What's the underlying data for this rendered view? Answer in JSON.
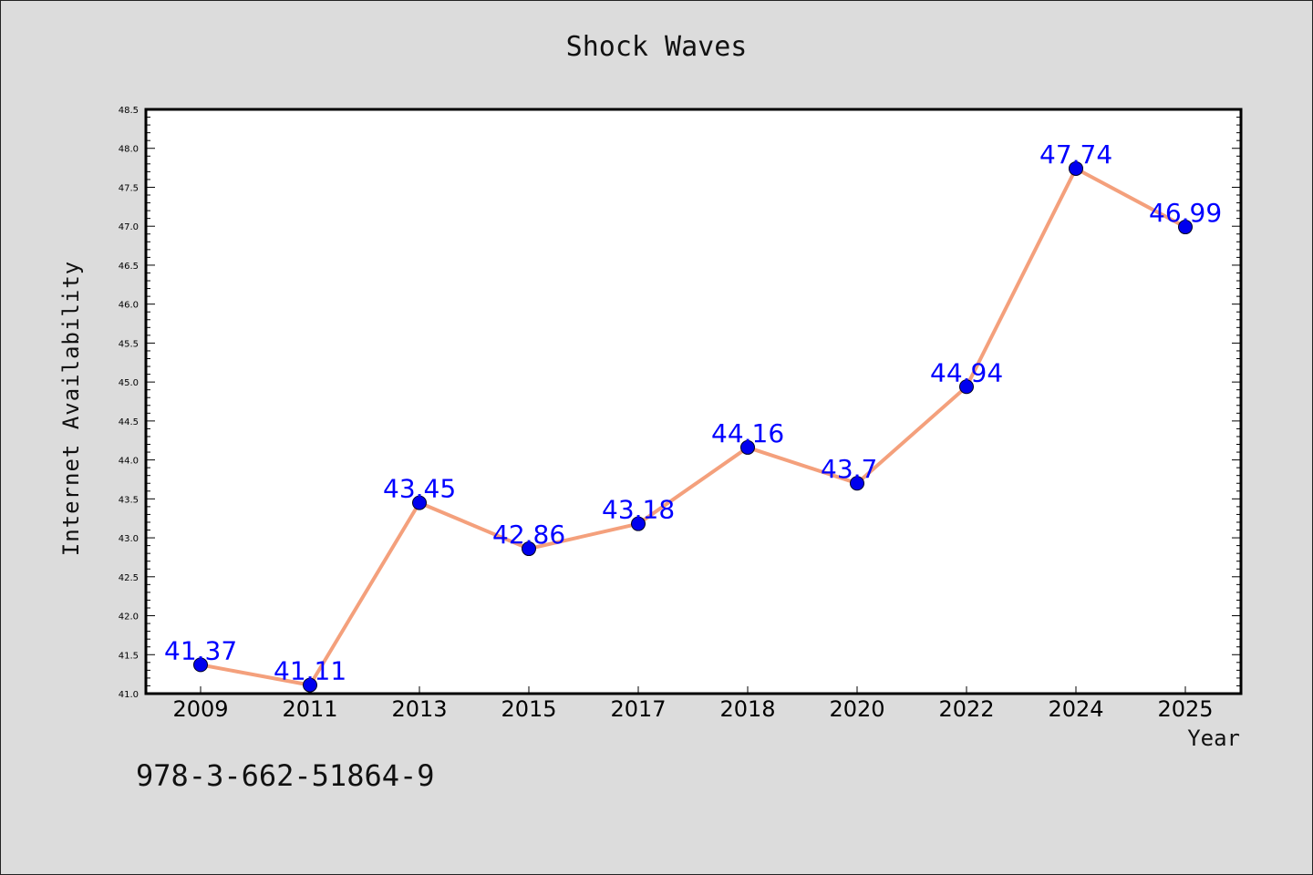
{
  "chart_data": {
    "type": "line",
    "title": "Shock Waves",
    "xlabel": "Year",
    "ylabel": "Internet Availability",
    "categories": [
      "2009",
      "2011",
      "2013",
      "2015",
      "2017",
      "2018",
      "2020",
      "2022",
      "2024",
      "2025"
    ],
    "series": [
      {
        "values": [
          41.37,
          41.11,
          43.45,
          42.86,
          43.18,
          44.16,
          43.7,
          44.94,
          47.74,
          46.99
        ],
        "data_labels": [
          "41.37",
          "41.11",
          "43.45",
          "42.86",
          "43.18",
          "44.16",
          "43.7",
          "44.94",
          "47.74",
          "46.99"
        ],
        "line_color": "#f4a07c",
        "marker_color": "#0000ee",
        "label_color": "#0000ff"
      }
    ],
    "ylim": [
      41.0,
      48.5
    ],
    "yticks": [
      "41.0",
      "41.5",
      "42.0",
      "42.5",
      "43.0",
      "43.5",
      "44.0",
      "44.5",
      "45.0",
      "45.5",
      "46.0",
      "46.5",
      "47.0",
      "47.5",
      "48.0",
      "48.5"
    ],
    "grid": false,
    "legend": "none"
  },
  "footer": {
    "isbn": "978-3-662-51864-9"
  },
  "colors": {
    "background": "#dcdcdc",
    "plot_background": "#ffffff"
  }
}
